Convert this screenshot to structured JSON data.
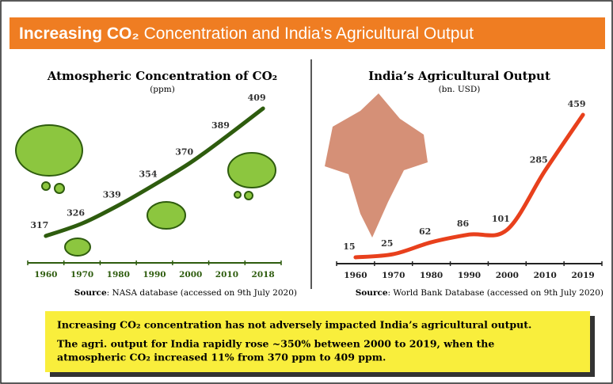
{
  "header": {
    "title_bold": "Increasing CO₂",
    "title_rest": "Concentration and India’s Agricultural Output"
  },
  "chart_data": [
    {
      "type": "line",
      "title": "Atmospheric Concentration of CO₂",
      "subtitle": "(ppm)",
      "categories": [
        "1960",
        "1970",
        "1980",
        "1990",
        "2000",
        "2010",
        "2018"
      ],
      "series": [
        {
          "color": "#2e5c0e",
          "values": [
            317,
            326,
            339,
            354,
            370,
            389,
            409
          ]
        }
      ],
      "source_label": "Source",
      "source": ": NASA database (accessed on 9th July 2020)"
    },
    {
      "type": "line",
      "title": "India’s Agricultural Output",
      "subtitle": "(bn. USD)",
      "categories": [
        "1960",
        "1970",
        "1980",
        "1990",
        "2000",
        "2010",
        "2019"
      ],
      "series": [
        {
          "color": "#e8401c",
          "values": [
            15,
            25,
            62,
            86,
            101,
            285,
            459
          ]
        }
      ],
      "source_label": "Source",
      "source": ": World Bank Database  (accessed on 9th July 2020)"
    }
  ],
  "callout": {
    "lines": [
      "Increasing CO₂ concentration has not adversely impacted India’s agricultural output.",
      "The agri. output for India rapidly rose ~350%  between 2000 to 2019, when the",
      "atmospheric CO₂ increased  11% from 370 ppm to 409 ppm."
    ]
  }
}
